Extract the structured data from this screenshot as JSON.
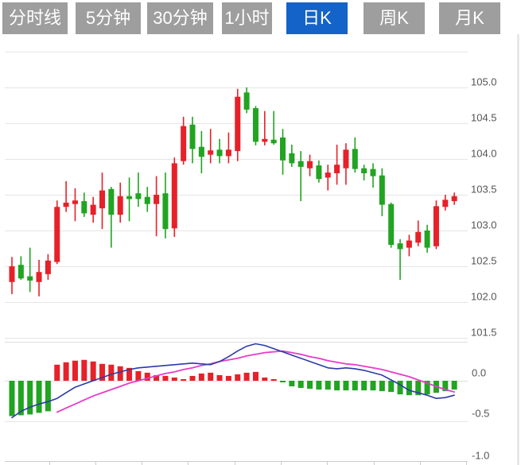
{
  "tabs": {
    "items": [
      {
        "label": "分时线",
        "active": false
      },
      {
        "label": "5分钟",
        "active": false
      },
      {
        "label": "30分钟",
        "active": false
      },
      {
        "label": "1小时",
        "active": false
      },
      {
        "label": "日K",
        "active": true
      },
      {
        "label": "周K",
        "active": false
      },
      {
        "label": "月K",
        "active": false
      }
    ]
  },
  "colors": {
    "tab_bg": "#9e9e9e",
    "tab_active_bg": "#1463c8",
    "tab_text": "#ffffff",
    "up": "#e62129",
    "down": "#21a421",
    "dif_line": "#2b3aa5",
    "dea_line": "#e83bcb",
    "grid": "#e5e5e5",
    "divider": "#dedede",
    "axis_line": "#cccccc",
    "axis_text": "#555555",
    "background": "#ffffff"
  },
  "chart_data": {
    "type": "candlestick",
    "title": "",
    "xlabel": "",
    "ylabel": "",
    "legend_position": "none",
    "grid": true,
    "price_axis": {
      "tick_labels": [
        "105.0",
        "104.5",
        "104.0",
        "103.5",
        "103.0",
        "102.5",
        "102.0",
        "101.5"
      ],
      "ylim": [
        101.3,
        105.5
      ]
    },
    "indicator_axis": {
      "tick_labels": [
        "0.0",
        "-0.5",
        "-1.0"
      ],
      "ylim": [
        -1.05,
        0.55
      ]
    },
    "candles_ohlc": [
      [
        102.28,
        102.63,
        102.11,
        102.5
      ],
      [
        102.52,
        102.64,
        102.31,
        102.33
      ],
      [
        102.36,
        102.76,
        102.14,
        102.3
      ],
      [
        102.28,
        102.59,
        102.08,
        102.42
      ],
      [
        102.39,
        102.67,
        102.31,
        102.58
      ],
      [
        102.56,
        103.42,
        102.53,
        103.33
      ],
      [
        103.33,
        103.69,
        103.26,
        103.39
      ],
      [
        103.37,
        103.59,
        103.13,
        103.42
      ],
      [
        103.41,
        103.53,
        103.19,
        103.24
      ],
      [
        103.22,
        103.47,
        103.11,
        103.36
      ],
      [
        103.31,
        103.81,
        103.02,
        103.56
      ],
      [
        103.58,
        103.61,
        102.76,
        103.22
      ],
      [
        103.22,
        103.67,
        103.11,
        103.48
      ],
      [
        103.48,
        103.74,
        103.13,
        103.44
      ],
      [
        103.52,
        103.81,
        103.33,
        103.44
      ],
      [
        103.47,
        103.61,
        103.26,
        103.37
      ],
      [
        103.37,
        103.76,
        102.92,
        103.5
      ],
      [
        103.52,
        103.81,
        102.89,
        103.02
      ],
      [
        103.03,
        104.02,
        102.91,
        103.94
      ],
      [
        103.97,
        104.59,
        103.92,
        104.46
      ],
      [
        104.48,
        104.59,
        103.94,
        104.14
      ],
      [
        104.17,
        104.39,
        103.8,
        104.03
      ],
      [
        104.06,
        104.42,
        103.94,
        104.12
      ],
      [
        104.13,
        104.28,
        103.94,
        104.04
      ],
      [
        104.04,
        104.37,
        103.94,
        104.13
      ],
      [
        104.11,
        104.98,
        103.97,
        104.87
      ],
      [
        104.93,
        105.0,
        104.64,
        104.69
      ],
      [
        104.71,
        104.74,
        104.19,
        104.24
      ],
      [
        104.24,
        104.67,
        104.19,
        104.28
      ],
      [
        104.27,
        104.67,
        104.2,
        104.22
      ],
      [
        104.3,
        104.42,
        103.78,
        103.98
      ],
      [
        104.08,
        104.2,
        103.89,
        103.94
      ],
      [
        103.97,
        104.11,
        103.41,
        103.89
      ],
      [
        103.87,
        104.06,
        103.76,
        103.97
      ],
      [
        103.91,
        103.98,
        103.67,
        103.72
      ],
      [
        103.74,
        103.92,
        103.56,
        103.81
      ],
      [
        103.8,
        104.2,
        103.64,
        103.92
      ],
      [
        103.87,
        104.22,
        103.64,
        104.13
      ],
      [
        104.14,
        104.3,
        103.81,
        103.86
      ],
      [
        103.87,
        103.92,
        103.7,
        103.8
      ],
      [
        103.86,
        103.94,
        103.6,
        103.76
      ],
      [
        103.77,
        103.87,
        103.2,
        103.36
      ],
      [
        103.37,
        103.39,
        102.76,
        102.8
      ],
      [
        102.82,
        102.88,
        102.31,
        102.74
      ],
      [
        102.76,
        102.94,
        102.64,
        102.86
      ],
      [
        102.83,
        103.14,
        102.78,
        102.98
      ],
      [
        103.0,
        103.08,
        102.69,
        102.76
      ],
      [
        102.78,
        103.42,
        102.74,
        103.34
      ],
      [
        103.33,
        103.5,
        103.28,
        103.43
      ],
      [
        103.41,
        103.53,
        103.36,
        103.48
      ]
    ],
    "macd_histogram": [
      -0.44,
      -0.43,
      -0.42,
      -0.4,
      -0.38,
      0.2,
      0.23,
      0.25,
      0.26,
      0.24,
      0.21,
      0.2,
      0.18,
      0.16,
      0.12,
      0.1,
      0.07,
      0.06,
      0.04,
      0.02,
      0.06,
      0.09,
      0.1,
      0.07,
      0.06,
      0.08,
      0.1,
      0.11,
      0.04,
      0.02,
      -0.02,
      -0.07,
      -0.09,
      -0.1,
      -0.11,
      -0.11,
      -0.12,
      -0.12,
      -0.12,
      -0.12,
      -0.12,
      -0.13,
      -0.14,
      -0.17,
      -0.18,
      -0.18,
      -0.17,
      -0.15,
      -0.13,
      -0.11
    ],
    "dif_line": [
      -0.46,
      -0.38,
      -0.33,
      -0.29,
      -0.26,
      -0.22,
      -0.15,
      -0.08,
      -0.04,
      0.0,
      0.04,
      0.08,
      0.11,
      0.14,
      0.16,
      0.17,
      0.18,
      0.19,
      0.2,
      0.21,
      0.22,
      0.21,
      0.2,
      0.24,
      0.3,
      0.37,
      0.43,
      0.46,
      0.44,
      0.4,
      0.36,
      0.32,
      0.28,
      0.24,
      0.2,
      0.16,
      0.15,
      0.16,
      0.15,
      0.13,
      0.1,
      0.07,
      0.01,
      -0.05,
      -0.12,
      -0.15,
      -0.18,
      -0.22,
      -0.21,
      -0.18
    ],
    "dea_line": [
      null,
      null,
      null,
      null,
      null,
      -0.39,
      -0.34,
      -0.29,
      -0.24,
      -0.19,
      -0.15,
      -0.11,
      -0.07,
      -0.03,
      0.0,
      0.03,
      0.06,
      0.09,
      0.11,
      0.14,
      0.16,
      0.19,
      0.21,
      0.24,
      0.26,
      0.28,
      0.31,
      0.33,
      0.35,
      0.36,
      0.37,
      0.35,
      0.33,
      0.3,
      0.28,
      0.25,
      0.23,
      0.21,
      0.2,
      0.18,
      0.16,
      0.14,
      0.11,
      0.08,
      0.05,
      0.01,
      -0.03,
      -0.07,
      -0.11,
      -0.14
    ]
  }
}
